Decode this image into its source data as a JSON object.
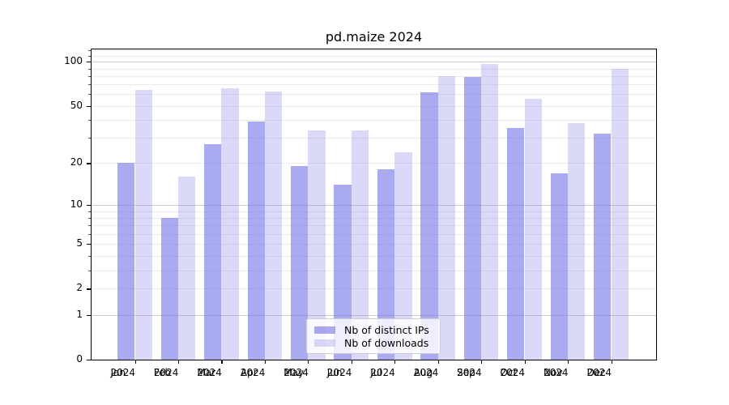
{
  "window": {
    "background": "#ffffff"
  },
  "chart_data": {
    "type": "bar",
    "title": "pd.maize 2024",
    "categories": [
      "Jan",
      "Feb",
      "Mar",
      "Apr",
      "May",
      "Jun",
      "Jul",
      "Aug",
      "Sep",
      "Oct",
      "Nov",
      "Dec"
    ],
    "category_year": "2024",
    "series": [
      {
        "name": "Nb of distinct IPs",
        "color": "rgba(118,118,230,0.62)",
        "values": [
          20,
          8,
          27,
          39,
          19,
          14,
          18,
          62,
          79,
          35,
          17,
          32
        ]
      },
      {
        "name": "Nb of downloads",
        "color": "rgba(118,118,230,0.27)",
        "values": [
          64,
          16,
          66,
          63,
          34,
          34,
          24,
          80,
          97,
          56,
          38,
          89
        ]
      }
    ],
    "xlabel": "",
    "ylabel": "",
    "yscale": "log1p",
    "ylim": [
      0,
      122
    ],
    "ytick_values": [
      100,
      50,
      20,
      10,
      5,
      2,
      1,
      0
    ],
    "ytick_labels": [
      "100",
      "50",
      "20",
      "10",
      "5",
      "2",
      "1",
      "0"
    ],
    "grid": true,
    "grid_major_values": [
      1,
      10,
      100
    ],
    "grid_minor_values": [
      2,
      3,
      4,
      5,
      6,
      7,
      8,
      9,
      20,
      30,
      40,
      50,
      60,
      70,
      80,
      90,
      110,
      120
    ],
    "legend_position": "lower center",
    "colors": {
      "bar_base": "#7676e6",
      "grid_major": "#cccccc",
      "grid_minor": "#ebebeb",
      "axis": "#000000",
      "text": "#000000",
      "legend_border": "#cccccc"
    }
  }
}
